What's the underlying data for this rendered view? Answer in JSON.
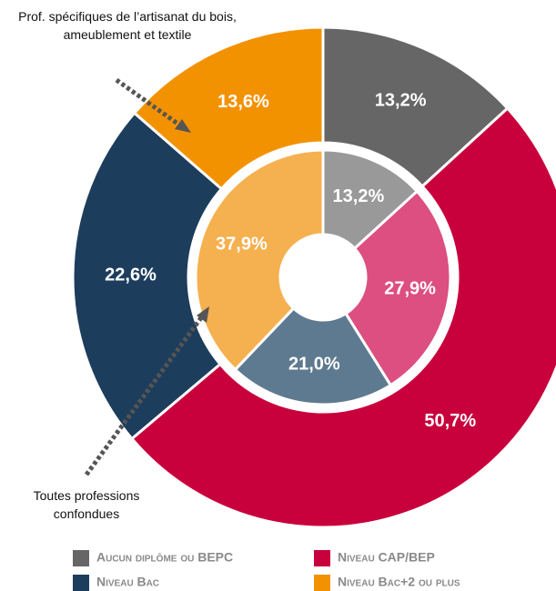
{
  "chart_data": {
    "type": "donut",
    "categories": [
      "Aucun diplôme ou BEPC",
      "Niveau CAP/BEP",
      "Niveau Bac",
      "Niveau Bac+2 ou plus"
    ],
    "series": [
      {
        "name": "Prof. spécifiques de l’artisanat du bois, ameublement et textile",
        "ring": "outer",
        "colors": [
          "#666666",
          "#c8003c",
          "#1d3d5c",
          "#f39200"
        ],
        "values": [
          13.2,
          50.7,
          22.6,
          13.6
        ],
        "value_labels": [
          "13,2%",
          "50,7%",
          "22,6%",
          "13,6%"
        ]
      },
      {
        "name": "Toutes professions confondues",
        "ring": "inner",
        "colors": [
          "#999999",
          "#dc4f80",
          "#5e7a90",
          "#f5b04f"
        ],
        "values": [
          13.2,
          27.9,
          21.0,
          37.9
        ],
        "value_labels": [
          "13,2%",
          "27,9%",
          "21,0%",
          "37,9%"
        ]
      }
    ],
    "legend": "bottom"
  }
}
